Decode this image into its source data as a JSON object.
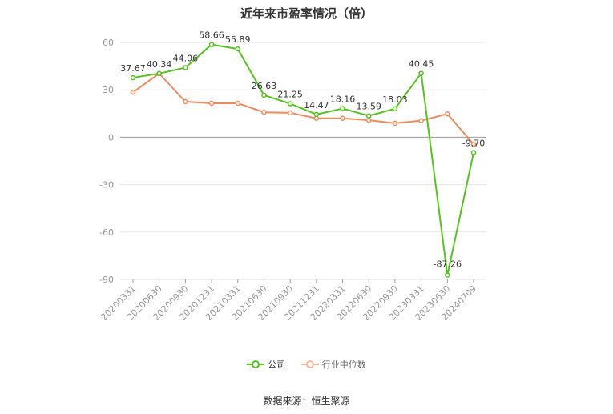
{
  "chart_data": {
    "type": "line",
    "title": "近年来市盈率情况（倍）",
    "categories": [
      "20200331",
      "20200630",
      "20200930",
      "20201231",
      "20210331",
      "20210630",
      "20210930",
      "20211231",
      "20220331",
      "20220630",
      "20220930",
      "20230331",
      "20230630",
      "20240709"
    ],
    "series": [
      {
        "name": "公司",
        "color": "#52c41a",
        "values": [
          37.67,
          40.34,
          44.06,
          58.66,
          55.89,
          26.63,
          21.25,
          14.47,
          18.16,
          13.59,
          18.03,
          40.45,
          -87.26,
          -9.7
        ],
        "labels": [
          "37.67",
          "40.34",
          "44.06",
          "58.66",
          "55.89",
          "26.63",
          "21.25",
          "14.47",
          "18.16",
          "13.59",
          "18.03",
          "40.45",
          "-87.26",
          "-9.70"
        ]
      },
      {
        "name": "行业中位数",
        "color": "#f08a5d",
        "values": [
          28.5,
          40.3,
          22.5,
          21.5,
          21.5,
          15.8,
          15.5,
          12.0,
          12.0,
          10.8,
          8.9,
          10.5,
          14.8,
          -4.5
        ]
      }
    ],
    "ylim": [
      -90,
      60
    ],
    "yticks": [
      60,
      30,
      0,
      -30,
      -60,
      -90
    ],
    "grid": true,
    "legend_position": "bottom"
  },
  "source": "数据来源：恒生聚源"
}
